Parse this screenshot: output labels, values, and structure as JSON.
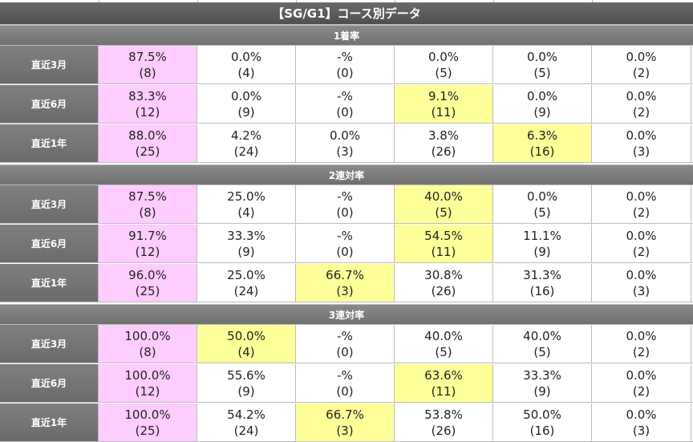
{
  "title": "【SG/G1】コース別データ",
  "colors": {
    "first_col": "#ffccff",
    "highlight": "#ffff99",
    "header": "#6b6b6b"
  },
  "sections": [
    {
      "label": "1着率",
      "rows": [
        {
          "label": "直近3月",
          "cells": [
            {
              "pct": "87.5%",
              "count": "(8)",
              "hl": "pink"
            },
            {
              "pct": "0.0%",
              "count": "(4)",
              "hl": ""
            },
            {
              "pct": "-%",
              "count": "(0)",
              "hl": ""
            },
            {
              "pct": "0.0%",
              "count": "(5)",
              "hl": ""
            },
            {
              "pct": "0.0%",
              "count": "(5)",
              "hl": ""
            },
            {
              "pct": "0.0%",
              "count": "(2)",
              "hl": ""
            }
          ]
        },
        {
          "label": "直近6月",
          "cells": [
            {
              "pct": "83.3%",
              "count": "(12)",
              "hl": "pink"
            },
            {
              "pct": "0.0%",
              "count": "(9)",
              "hl": ""
            },
            {
              "pct": "-%",
              "count": "(0)",
              "hl": ""
            },
            {
              "pct": "9.1%",
              "count": "(11)",
              "hl": "yellow"
            },
            {
              "pct": "0.0%",
              "count": "(9)",
              "hl": ""
            },
            {
              "pct": "0.0%",
              "count": "(2)",
              "hl": ""
            }
          ]
        },
        {
          "label": "直近1年",
          "cells": [
            {
              "pct": "88.0%",
              "count": "(25)",
              "hl": "pink"
            },
            {
              "pct": "4.2%",
              "count": "(24)",
              "hl": ""
            },
            {
              "pct": "0.0%",
              "count": "(3)",
              "hl": ""
            },
            {
              "pct": "3.8%",
              "count": "(26)",
              "hl": ""
            },
            {
              "pct": "6.3%",
              "count": "(16)",
              "hl": "yellow"
            },
            {
              "pct": "0.0%",
              "count": "(3)",
              "hl": ""
            }
          ]
        }
      ]
    },
    {
      "label": "2連対率",
      "rows": [
        {
          "label": "直近3月",
          "cells": [
            {
              "pct": "87.5%",
              "count": "(8)",
              "hl": "pink"
            },
            {
              "pct": "25.0%",
              "count": "(4)",
              "hl": ""
            },
            {
              "pct": "-%",
              "count": "(0)",
              "hl": ""
            },
            {
              "pct": "40.0%",
              "count": "(5)",
              "hl": "yellow"
            },
            {
              "pct": "0.0%",
              "count": "(5)",
              "hl": ""
            },
            {
              "pct": "0.0%",
              "count": "(2)",
              "hl": ""
            }
          ]
        },
        {
          "label": "直近6月",
          "cells": [
            {
              "pct": "91.7%",
              "count": "(12)",
              "hl": "pink"
            },
            {
              "pct": "33.3%",
              "count": "(9)",
              "hl": ""
            },
            {
              "pct": "-%",
              "count": "(0)",
              "hl": ""
            },
            {
              "pct": "54.5%",
              "count": "(11)",
              "hl": "yellow"
            },
            {
              "pct": "11.1%",
              "count": "(9)",
              "hl": ""
            },
            {
              "pct": "0.0%",
              "count": "(2)",
              "hl": ""
            }
          ]
        },
        {
          "label": "直近1年",
          "cells": [
            {
              "pct": "96.0%",
              "count": "(25)",
              "hl": "pink"
            },
            {
              "pct": "25.0%",
              "count": "(24)",
              "hl": ""
            },
            {
              "pct": "66.7%",
              "count": "(3)",
              "hl": "yellow"
            },
            {
              "pct": "30.8%",
              "count": "(26)",
              "hl": ""
            },
            {
              "pct": "31.3%",
              "count": "(16)",
              "hl": ""
            },
            {
              "pct": "0.0%",
              "count": "(3)",
              "hl": ""
            }
          ]
        }
      ]
    },
    {
      "label": "3連対率",
      "rows": [
        {
          "label": "直近3月",
          "cells": [
            {
              "pct": "100.0%",
              "count": "(8)",
              "hl": "pink"
            },
            {
              "pct": "50.0%",
              "count": "(4)",
              "hl": "yellow"
            },
            {
              "pct": "-%",
              "count": "(0)",
              "hl": ""
            },
            {
              "pct": "40.0%",
              "count": "(5)",
              "hl": ""
            },
            {
              "pct": "40.0%",
              "count": "(5)",
              "hl": ""
            },
            {
              "pct": "0.0%",
              "count": "(2)",
              "hl": ""
            }
          ]
        },
        {
          "label": "直近6月",
          "cells": [
            {
              "pct": "100.0%",
              "count": "(12)",
              "hl": "pink"
            },
            {
              "pct": "55.6%",
              "count": "(9)",
              "hl": ""
            },
            {
              "pct": "-%",
              "count": "(0)",
              "hl": ""
            },
            {
              "pct": "63.6%",
              "count": "(11)",
              "hl": "yellow"
            },
            {
              "pct": "33.3%",
              "count": "(9)",
              "hl": ""
            },
            {
              "pct": "0.0%",
              "count": "(2)",
              "hl": ""
            }
          ]
        },
        {
          "label": "直近1年",
          "cells": [
            {
              "pct": "100.0%",
              "count": "(25)",
              "hl": "pink"
            },
            {
              "pct": "54.2%",
              "count": "(24)",
              "hl": ""
            },
            {
              "pct": "66.7%",
              "count": "(3)",
              "hl": "yellow"
            },
            {
              "pct": "53.8%",
              "count": "(26)",
              "hl": ""
            },
            {
              "pct": "50.0%",
              "count": "(16)",
              "hl": ""
            },
            {
              "pct": "0.0%",
              "count": "(3)",
              "hl": ""
            }
          ]
        }
      ]
    }
  ]
}
